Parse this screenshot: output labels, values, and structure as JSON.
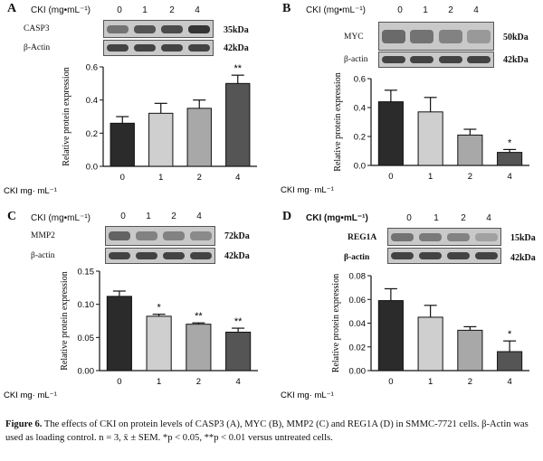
{
  "panels": [
    {
      "letter": "A",
      "dose_label": "CKI (mg•mL⁻¹)",
      "lanes": [
        "0",
        "1",
        "2",
        "4"
      ],
      "bands": [
        {
          "name": "CASP3",
          "kda": "35kDa",
          "intensity": [
            0.55,
            0.75,
            0.8,
            0.95
          ]
        },
        {
          "name": "β-Actin",
          "kda": "42kDa",
          "intensity": [
            0.85,
            0.85,
            0.85,
            0.85
          ]
        }
      ]
    },
    {
      "letter": "B",
      "dose_label": "CKI (mg•mL⁻¹)",
      "lanes": [
        "0",
        "1",
        "2",
        "4"
      ],
      "bands": [
        {
          "name": "MYC",
          "kda": "50kDa",
          "intensity": [
            0.6,
            0.55,
            0.45,
            0.3
          ]
        },
        {
          "name": "β-actin",
          "kda": "42kDa",
          "intensity": [
            0.85,
            0.85,
            0.85,
            0.85
          ]
        }
      ]
    },
    {
      "letter": "C",
      "dose_label": "CKI (mg•mL⁻¹)",
      "lanes": [
        "0",
        "1",
        "2",
        "4"
      ],
      "bands": [
        {
          "name": "MMP2",
          "kda": "72kDa",
          "intensity": [
            0.65,
            0.45,
            0.45,
            0.4
          ]
        },
        {
          "name": "β-actin",
          "kda": "42kDa",
          "intensity": [
            0.85,
            0.85,
            0.85,
            0.85
          ]
        }
      ]
    },
    {
      "letter": "D",
      "dose_label": "CKI (mg•mL⁻¹)",
      "lanes": [
        "0",
        "1",
        "2",
        "4"
      ],
      "bands": [
        {
          "name": "REG1A",
          "kda": "15kDa",
          "intensity": [
            0.55,
            0.5,
            0.45,
            0.25
          ]
        },
        {
          "name": "β-actin",
          "kda": "42kDa",
          "intensity": [
            0.85,
            0.85,
            0.85,
            0.85
          ]
        }
      ]
    }
  ],
  "chart_data": [
    {
      "panel": "A",
      "type": "bar",
      "categories": [
        "0",
        "1",
        "2",
        "4"
      ],
      "values": [
        0.26,
        0.32,
        0.35,
        0.5
      ],
      "errors": [
        0.04,
        0.06,
        0.05,
        0.05
      ],
      "significance": [
        "",
        "",
        "",
        "**"
      ],
      "ylabel": "Relative protein expression",
      "xlabel": "CKI  mg· mL⁻¹",
      "ylim": [
        0,
        0.6
      ],
      "yticks": [
        "0.0",
        "0.2",
        "0.4",
        "0.6"
      ],
      "ytick_values": [
        0,
        0.2,
        0.4,
        0.6
      ],
      "bar_colors": [
        "#2b2b2b",
        "#cfcfcf",
        "#a8a8a8",
        "#555555"
      ]
    },
    {
      "panel": "B",
      "type": "bar",
      "categories": [
        "0",
        "1",
        "2",
        "4"
      ],
      "values": [
        0.44,
        0.37,
        0.21,
        0.09
      ],
      "errors": [
        0.08,
        0.1,
        0.04,
        0.02
      ],
      "significance": [
        "",
        "",
        "",
        "*"
      ],
      "ylabel": "Relative protein expression",
      "xlabel": "CKI  mg· mL⁻¹",
      "ylim": [
        0,
        0.6
      ],
      "yticks": [
        "0.0",
        "0.2",
        "0.4",
        "0.6"
      ],
      "ytick_values": [
        0,
        0.2,
        0.4,
        0.6
      ],
      "bar_colors": [
        "#2b2b2b",
        "#cfcfcf",
        "#a8a8a8",
        "#555555"
      ]
    },
    {
      "panel": "C",
      "type": "bar",
      "categories": [
        "0",
        "1",
        "2",
        "4"
      ],
      "values": [
        0.112,
        0.082,
        0.07,
        0.058
      ],
      "errors": [
        0.008,
        0.003,
        0.002,
        0.006
      ],
      "significance": [
        "",
        "*",
        "**",
        "**"
      ],
      "ylabel": "Relative protein expression",
      "xlabel": "CKI  mg· mL⁻¹",
      "ylim": [
        0,
        0.15
      ],
      "yticks": [
        "0.00",
        "0.05",
        "0.10",
        "0.15"
      ],
      "ytick_values": [
        0,
        0.05,
        0.1,
        0.15
      ],
      "bar_colors": [
        "#2b2b2b",
        "#cfcfcf",
        "#a8a8a8",
        "#555555"
      ]
    },
    {
      "panel": "D",
      "type": "bar",
      "categories": [
        "0",
        "1",
        "2",
        "4"
      ],
      "values": [
        0.059,
        0.045,
        0.034,
        0.016
      ],
      "errors": [
        0.01,
        0.01,
        0.003,
        0.009
      ],
      "significance": [
        "",
        "",
        "",
        "*"
      ],
      "ylabel": "Relative protein expression",
      "xlabel": "CKI  mg· mL⁻¹",
      "ylim": [
        0,
        0.08
      ],
      "yticks": [
        "0.00",
        "0.02",
        "0.04",
        "0.06",
        "0.08"
      ],
      "ytick_values": [
        0,
        0.02,
        0.04,
        0.06,
        0.08
      ],
      "bar_colors": [
        "#2b2b2b",
        "#cfcfcf",
        "#a8a8a8",
        "#555555"
      ]
    }
  ],
  "caption": {
    "label": "Figure 6.",
    "text": "The effects of CKI on protein levels of CASP3 (A), MYC (B), MMP2 (C) and REG1A (D) in SMMC-7721 cells. β-Actin was used as loading control. n = 3, x̄ ± SEM. *p < 0.05, **p < 0.01 versus untreated cells."
  }
}
